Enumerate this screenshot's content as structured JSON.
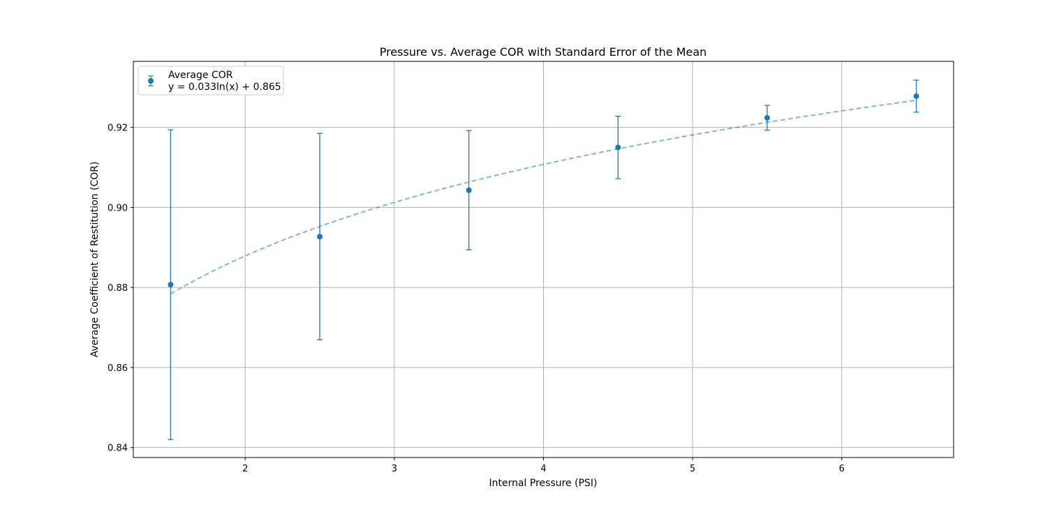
{
  "chart_data": {
    "type": "scatter",
    "title": "Pressure vs. Average COR with Standard Error of the Mean",
    "xlabel": "Internal Pressure (PSI)",
    "ylabel": "Average Coefficient of Restitution (COR)",
    "xlim": [
      1.25,
      6.75
    ],
    "ylim": [
      0.8375,
      0.9365
    ],
    "xticks": [
      2,
      3,
      4,
      5,
      6
    ],
    "yticks": [
      0.84,
      0.86,
      0.88,
      0.9,
      0.92
    ],
    "ytick_labels": [
      "0.84",
      "0.86",
      "0.88",
      "0.90",
      "0.92"
    ],
    "grid": true,
    "legend_placement": "top-left",
    "series": [
      {
        "name": "Average COR",
        "kind": "errorbar",
        "color": "#1f77b4",
        "x": [
          1.5,
          2.5,
          3.5,
          4.5,
          5.5,
          6.5
        ],
        "y": [
          0.8807,
          0.8927,
          0.9043,
          0.915,
          0.9224,
          0.9278
        ],
        "yerr": [
          0.0387,
          0.0258,
          0.0149,
          0.0078,
          0.0031,
          0.004
        ]
      },
      {
        "name": "y = 0.033ln(x) + 0.865",
        "kind": "fit",
        "color": "#1f77b4",
        "style": "dashed",
        "equation": {
          "a": 0.033,
          "b": 0.865,
          "form": "ln"
        },
        "x_range": [
          1.5,
          6.5
        ]
      }
    ]
  }
}
